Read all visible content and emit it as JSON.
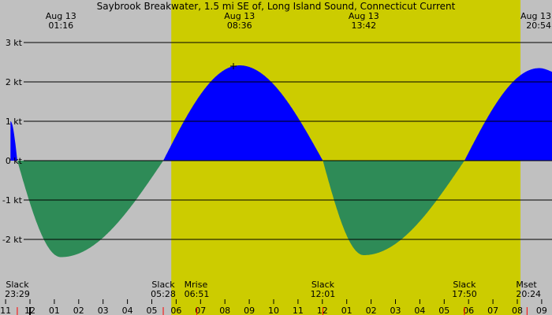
{
  "chart_data": {
    "type": "area",
    "title": "Saybrook Breakwater, 1.5 mi SE of, Long Island Sound, Connecticut Current",
    "xlabel": "",
    "ylabel": "",
    "ylim": [
      -3.0,
      3.0
    ],
    "y_ticks": [
      {
        "value": 3,
        "label": "3 kt"
      },
      {
        "value": 2,
        "label": "2 kt"
      },
      {
        "value": 1,
        "label": "1 kt"
      },
      {
        "value": 0,
        "label": "0 kt"
      },
      {
        "value": -1,
        "label": "-1 kt"
      },
      {
        "value": -2,
        "label": "-2 kt"
      }
    ],
    "x_range_hours": [
      -0.8,
      21.8
    ],
    "hour_ticks": [
      {
        "hour": -1,
        "label": "11"
      },
      {
        "hour": 0,
        "label": "12"
      },
      {
        "hour": 1,
        "label": "01"
      },
      {
        "hour": 2,
        "label": "02"
      },
      {
        "hour": 3,
        "label": "03"
      },
      {
        "hour": 4,
        "label": "04"
      },
      {
        "hour": 5,
        "label": "05"
      },
      {
        "hour": 6,
        "label": "06"
      },
      {
        "hour": 7,
        "label": "07"
      },
      {
        "hour": 8,
        "label": "08"
      },
      {
        "hour": 9,
        "label": "09"
      },
      {
        "hour": 10,
        "label": "10"
      },
      {
        "hour": 11,
        "label": "11"
      },
      {
        "hour": 12,
        "label": "12"
      },
      {
        "hour": 13,
        "label": "01"
      },
      {
        "hour": 14,
        "label": "02"
      },
      {
        "hour": 15,
        "label": "03"
      },
      {
        "hour": 16,
        "label": "04"
      },
      {
        "hour": 17,
        "label": "05"
      },
      {
        "hour": 18,
        "label": "06"
      },
      {
        "hour": 19,
        "label": "07"
      },
      {
        "hour": 20,
        "label": "08"
      },
      {
        "hour": 21,
        "label": "09"
      }
    ],
    "daylight": {
      "start_hour": 5.8,
      "end_hour": 20.13
    },
    "current_points": [
      {
        "hour": -0.8,
        "knots": 1.0
      },
      {
        "hour": -0.52,
        "knots": 0.0
      },
      {
        "hour": 1.27,
        "knots": -2.45
      },
      {
        "hour": 5.47,
        "knots": 0.0
      },
      {
        "hour": 8.6,
        "knots": 2.42
      },
      {
        "hour": 12.02,
        "knots": 0.0
      },
      {
        "hour": 13.7,
        "knots": -2.4
      },
      {
        "hour": 17.83,
        "knots": 0.0
      },
      {
        "hour": 20.9,
        "knots": 2.35
      },
      {
        "hour": 21.8,
        "knots": 2.2
      }
    ],
    "series": [
      {
        "kind": "flood",
        "color": "#0000ff"
      },
      {
        "kind": "ebb",
        "color": "#2e8b57"
      }
    ],
    "peak_labels": [
      {
        "hour": 1.27,
        "date": "Aug 13",
        "time": "01:16"
      },
      {
        "hour": 8.6,
        "date": "Aug 13",
        "time": "08:36"
      },
      {
        "hour": 13.7,
        "date": "Aug 13",
        "time": "13:42"
      },
      {
        "hour": 20.9,
        "date": "Aug 13",
        "time": "20:54"
      }
    ],
    "event_labels": [
      {
        "hour": -0.52,
        "label": "Slack",
        "time": "23:29"
      },
      {
        "hour": 5.47,
        "label": "Slack",
        "time": "05:28"
      },
      {
        "hour": 6.85,
        "label": "Mrise",
        "time": "06:51"
      },
      {
        "hour": 12.02,
        "label": "Slack",
        "time": "12:01"
      },
      {
        "hour": 17.83,
        "label": "Slack",
        "time": "17:50"
      },
      {
        "hour": 20.4,
        "label": "Mset",
        "time": "20:24"
      }
    ],
    "marker_hour": 8.35,
    "marker_knots": 2.4
  },
  "colors": {
    "night": "#c0c0c0",
    "day": "#cccc00",
    "flood": "#0000ff",
    "ebb": "#2e8b57",
    "event_tick": "#ff0000",
    "now_tick": "#000000"
  }
}
